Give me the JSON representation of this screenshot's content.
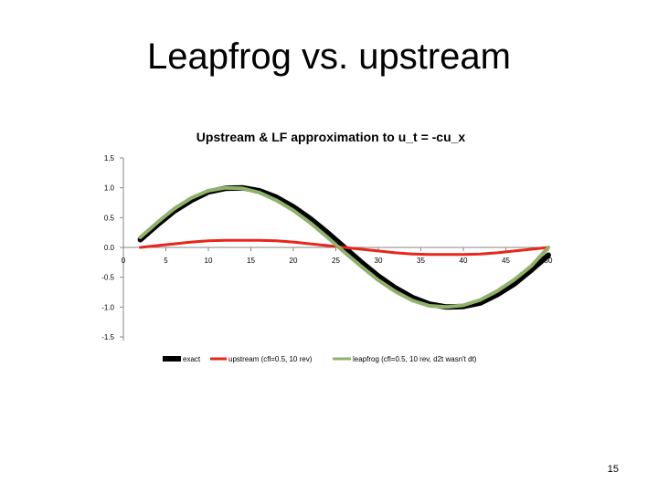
{
  "slide": {
    "title": "Leapfrog vs. upstream",
    "page_number": "15"
  },
  "chart_data": {
    "type": "line",
    "title": "Upstream & LF approximation to u_t = -cu_x",
    "xlabel": "",
    "ylabel": "",
    "xlim": [
      0,
      50
    ],
    "ylim": [
      -1.5,
      1.5
    ],
    "x_ticks": [
      "0",
      "5",
      "10",
      "15",
      "20",
      "25",
      "30",
      "35",
      "40",
      "45",
      "50"
    ],
    "y_ticks": [
      "1.5",
      "1.0",
      "0.5",
      "0.0",
      "-0.5",
      "-1.0",
      "-1.5"
    ],
    "grid": false,
    "legend_position": "bottom",
    "series": [
      {
        "name": "exact",
        "color": "#000000",
        "x": [
          2,
          4,
          6,
          8,
          10,
          12,
          14,
          16,
          18,
          20,
          22,
          24,
          26,
          28,
          30,
          32,
          34,
          36,
          38,
          40,
          42,
          44,
          46,
          48,
          50
        ],
        "y": [
          0.13,
          0.38,
          0.61,
          0.79,
          0.93,
          0.99,
          1.0,
          0.95,
          0.84,
          0.68,
          0.48,
          0.25,
          0.0,
          -0.25,
          -0.48,
          -0.68,
          -0.84,
          -0.95,
          -1.0,
          -0.99,
          -0.93,
          -0.79,
          -0.61,
          -0.38,
          -0.13
        ]
      },
      {
        "name": "upstream (cfl=0.5, 10 rev)",
        "color": "#e8261b",
        "x": [
          2,
          4,
          6,
          8,
          10,
          12,
          14,
          16,
          18,
          20,
          22,
          24,
          26,
          28,
          30,
          32,
          34,
          36,
          38,
          40,
          42,
          44,
          46,
          48,
          50
        ],
        "y": [
          0.0,
          0.03,
          0.06,
          0.09,
          0.11,
          0.12,
          0.12,
          0.12,
          0.11,
          0.09,
          0.06,
          0.03,
          0.0,
          -0.03,
          -0.06,
          -0.09,
          -0.11,
          -0.12,
          -0.12,
          -0.12,
          -0.11,
          -0.09,
          -0.06,
          -0.03,
          0.0
        ]
      },
      {
        "name": "leapfrog (cfl=0.5, 10 rev, d2t wasn't dt)",
        "color": "#8fb26b",
        "x": [
          2,
          4,
          6,
          8,
          10,
          12,
          14,
          16,
          18,
          20,
          22,
          24,
          26,
          28,
          30,
          32,
          34,
          36,
          38,
          40,
          42,
          44,
          46,
          48,
          50
        ],
        "y": [
          0.17,
          0.42,
          0.65,
          0.83,
          0.95,
          1.0,
          0.99,
          0.92,
          0.79,
          0.62,
          0.41,
          0.17,
          -0.08,
          -0.32,
          -0.55,
          -0.74,
          -0.89,
          -0.98,
          -1.0,
          -0.97,
          -0.88,
          -0.73,
          -0.54,
          -0.31,
          0.0
        ]
      }
    ]
  }
}
